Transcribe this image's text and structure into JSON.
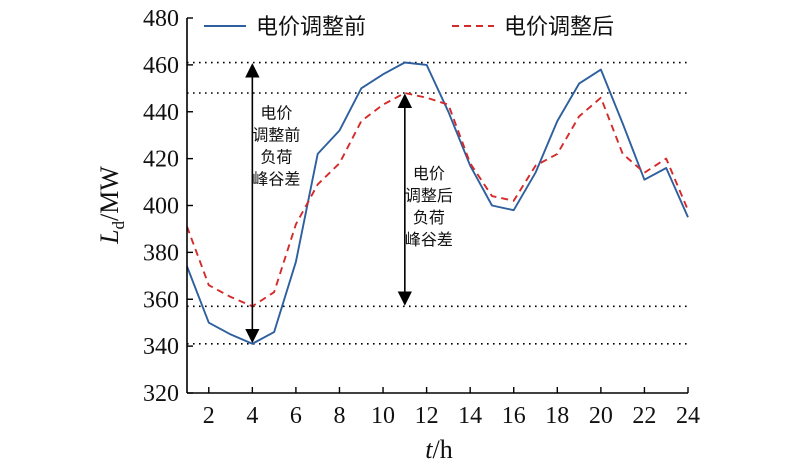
{
  "chart_data": {
    "type": "line",
    "x": [
      1,
      2,
      3,
      4,
      5,
      6,
      7,
      8,
      9,
      10,
      11,
      12,
      13,
      14,
      15,
      16,
      17,
      18,
      19,
      20,
      21,
      22,
      23,
      24
    ],
    "series": [
      {
        "name": "电价调整前",
        "color": "#2e5f9e",
        "style": "solid",
        "values": [
          374,
          350,
          345,
          341,
          346,
          376,
          422,
          432,
          450,
          456,
          461,
          460,
          440,
          417,
          400,
          398,
          414,
          436,
          452,
          458,
          435,
          411,
          416,
          395
        ]
      },
      {
        "name": "电价调整后",
        "color": "#d42a2a",
        "style": "dashed",
        "values": [
          391,
          366,
          361,
          357,
          363,
          392,
          409,
          418,
          436,
          443,
          448,
          446,
          443,
          418,
          404,
          402,
          417,
          422,
          438,
          446,
          422,
          414,
          420,
          398
        ]
      }
    ],
    "xlabel": {
      "italic": "t",
      "rest": "/h"
    },
    "ylabel": {
      "italic": "L",
      "sub": "d",
      "rest": "/MW"
    },
    "xlim": [
      1,
      24
    ],
    "ylim": [
      320,
      480
    ],
    "xticks": [
      2,
      4,
      6,
      8,
      10,
      12,
      14,
      16,
      18,
      20,
      22,
      24
    ],
    "yticks": [
      320,
      340,
      360,
      380,
      400,
      420,
      440,
      460,
      480
    ],
    "reference_lines": [
      461,
      448,
      357,
      341
    ],
    "annotations": [
      {
        "x": 4,
        "y_from": 341,
        "y_to": 461,
        "lines": [
          "电价",
          "调整前",
          "负荷",
          "峰谷差"
        ]
      },
      {
        "x": 11,
        "y_from": 357,
        "y_to": 448,
        "lines": [
          "电价",
          "调整后",
          "负荷",
          "峰谷差"
        ]
      }
    ],
    "legend_position": "top"
  }
}
